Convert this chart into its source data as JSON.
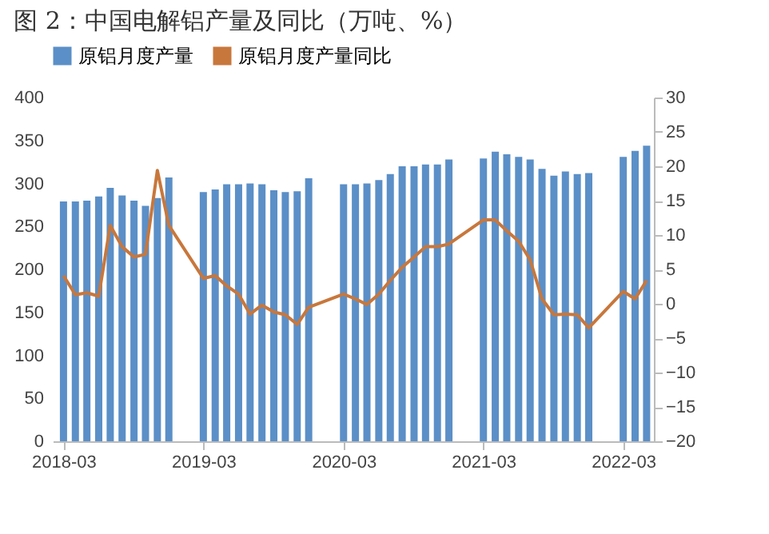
{
  "chart_data": {
    "type": "bar",
    "title": "图 2：中国电解铝产量及同比（万吨、%）",
    "legend": "top",
    "x": [
      "2018-03",
      "2018-04",
      "2018-05",
      "2018-06",
      "2018-07",
      "2018-08",
      "2018-09",
      "2018-10",
      "2018-11",
      "2018-12",
      "2019-03",
      "2019-04",
      "2019-05",
      "2019-06",
      "2019-07",
      "2019-08",
      "2019-09",
      "2019-10",
      "2019-11",
      "2019-12",
      "2020-03",
      "2020-04",
      "2020-05",
      "2020-06",
      "2020-07",
      "2020-08",
      "2020-09",
      "2020-10",
      "2020-11",
      "2020-12",
      "2021-03",
      "2021-04",
      "2021-05",
      "2021-06",
      "2021-07",
      "2021-08",
      "2021-09",
      "2021-10",
      "2021-11",
      "2021-12",
      "2022-03",
      "2022-04",
      "2022-05"
    ],
    "series": [
      {
        "name": "原铝月度产量",
        "color": "#5b8fc7",
        "values": [
          279,
          279,
          280,
          285,
          295,
          286,
          280,
          274,
          283,
          307,
          290,
          293,
          299,
          299,
          300,
          299,
          292,
          290,
          291,
          306,
          299,
          299,
          300,
          304,
          311,
          320,
          320,
          322,
          322,
          328,
          329,
          337,
          334,
          331,
          328,
          317,
          309,
          314,
          311,
          312,
          331,
          338,
          344
        ]
      },
      {
        "name": "原铝月度产量同比",
        "type": "line",
        "axis": "y2",
        "color": "#c8773c",
        "values": [
          4.1,
          1.3,
          1.6,
          1.1,
          11.4,
          8.3,
          6.8,
          7.2,
          19.4,
          11.4,
          3.7,
          4.1,
          2.6,
          1.4,
          -1.5,
          -0.2,
          -1.2,
          -1.6,
          -3.0,
          -0.5,
          1.4,
          0.7,
          -0.1,
          1.4,
          3.4,
          5.3,
          6.8,
          8.3,
          8.3,
          8.7,
          12.2,
          12.2,
          10.6,
          9.1,
          6.4,
          0.7,
          -1.6,
          -1.5,
          -1.6,
          -3.5,
          1.8,
          0.7,
          3.4
        ]
      }
    ],
    "xlim": [
      "2018-02-01",
      "2022-05-20"
    ],
    "xticks": [
      "2018-03",
      "2019-03",
      "2020-03",
      "2021-03",
      "2022-03"
    ],
    "ylim": [
      0,
      400
    ],
    "yticks": [
      0,
      50,
      100,
      150,
      200,
      250,
      300,
      350,
      400
    ],
    "y2lim": [
      -20,
      30
    ],
    "y2ticks": [
      -20,
      -15,
      -10,
      -5,
      0,
      5,
      10,
      15,
      20,
      25,
      30
    ]
  }
}
